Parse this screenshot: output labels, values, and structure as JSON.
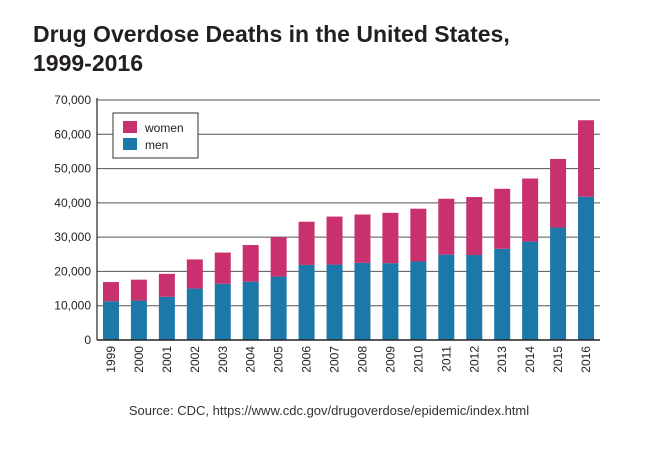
{
  "title_line1": "Drug Overdose Deaths in the United States,",
  "title_line2": "1999-2016",
  "source": "Source: CDC, https://www.cdc.gov/drugoverdose/epidemic/index.html",
  "colors": {
    "women": "#c8316e",
    "men": "#1b78a8",
    "axis": "#222222",
    "grid": "#555555"
  },
  "chart_data": {
    "type": "bar",
    "stacked": true,
    "title": "Drug Overdose Deaths in the United States, 1999-2016",
    "xlabel": "",
    "ylabel": "",
    "ylim": [
      0,
      70000
    ],
    "yticks": [
      0,
      10000,
      20000,
      30000,
      40000,
      50000,
      60000,
      70000
    ],
    "ytick_labels": [
      "0",
      "10,000",
      "20,000",
      "30,000",
      "40,000",
      "50,000",
      "60,000",
      "70,000"
    ],
    "categories": [
      "1999",
      "2000",
      "2001",
      "2002",
      "2003",
      "2004",
      "2005",
      "2006",
      "2007",
      "2008",
      "2009",
      "2010",
      "2011",
      "2012",
      "2013",
      "2014",
      "2015",
      "2016"
    ],
    "series": [
      {
        "name": "men",
        "values": [
          11300,
          11500,
          12600,
          15000,
          16400,
          17000,
          18500,
          21900,
          22000,
          22500,
          22400,
          22900,
          24900,
          24800,
          26600,
          28700,
          32800,
          41800
        ]
      },
      {
        "name": "women",
        "values": [
          5600,
          6100,
          6700,
          8500,
          9100,
          10700,
          11500,
          12600,
          14000,
          14100,
          14700,
          15400,
          16300,
          16900,
          17500,
          18400,
          20000,
          22300
        ]
      }
    ],
    "legend": [
      "women",
      "men"
    ],
    "legend_position": "top-left",
    "grid": true
  }
}
